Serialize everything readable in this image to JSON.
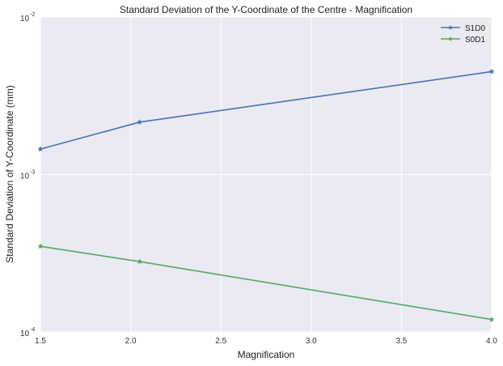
{
  "chart_data": {
    "type": "line",
    "title": "Standard Deviation of the Y-Coordinate of the Centre - Magnification",
    "xlabel": "Magnification",
    "ylabel": "Standard Deviation of Y-Coordinate (mm)",
    "xlim": [
      1.5,
      4.0
    ],
    "ylim": [
      0.0001,
      0.01
    ],
    "yscale": "log",
    "xticks": [
      "1.5",
      "2.0",
      "2.5",
      "3.0",
      "3.5",
      "4.0"
    ],
    "yticks": [
      {
        "base": "10",
        "exp": "-4"
      },
      {
        "base": "10",
        "exp": "-3"
      },
      {
        "base": "10",
        "exp": "-2"
      }
    ],
    "grid": true,
    "legend": "top-right",
    "x": [
      1.5,
      2.05,
      4.0
    ],
    "series": [
      {
        "name": "S1D0",
        "color": "#4c72b0",
        "marker": "star",
        "values": [
          0.00145,
          0.00215,
          0.0045
        ]
      },
      {
        "name": "S0D1",
        "color": "#55a868",
        "marker": "star",
        "values": [
          0.00035,
          0.00028,
          0.00012
        ]
      }
    ]
  }
}
